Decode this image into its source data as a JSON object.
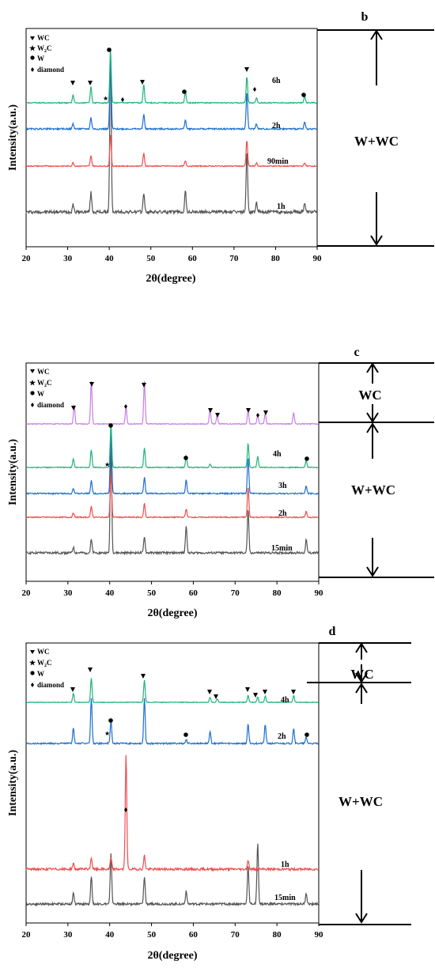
{
  "charts": [
    {
      "panel": "b",
      "type": "line",
      "xlabel": "2θ(degree)",
      "ylabel": "Intensity(a.u.)",
      "xlim": [
        20,
        90
      ],
      "xticks": [
        20,
        30,
        40,
        50,
        60,
        70,
        80,
        90
      ],
      "legend": [
        {
          "marker": "triangle",
          "label": "WC"
        },
        {
          "marker": "star",
          "label": "W₂C"
        },
        {
          "marker": "circle",
          "label": "W"
        },
        {
          "marker": "diamond",
          "label": "diamond"
        }
      ],
      "series": [
        {
          "name": "1h",
          "color": "#555555"
        },
        {
          "name": "90min",
          "color": "#f04d4d"
        },
        {
          "name": "2h",
          "color": "#1f6fd1"
        },
        {
          "name": "6h",
          "color": "#1fb57a"
        }
      ],
      "phase_labels": [
        "W+WC"
      ],
      "markers": [
        {
          "type": "triangle",
          "x": 31.3
        },
        {
          "type": "triangle",
          "x": 35.6
        },
        {
          "type": "circle",
          "x": 40.3
        },
        {
          "type": "star",
          "x": 39.6
        },
        {
          "type": "diamond",
          "x": 43.9
        },
        {
          "type": "triangle",
          "x": 48.3
        },
        {
          "type": "circle",
          "x": 58.3
        },
        {
          "type": "triangle",
          "x": 73.1
        },
        {
          "type": "diamond",
          "x": 75.4
        },
        {
          "type": "circle",
          "x": 87.0
        }
      ]
    },
    {
      "panel": "c",
      "type": "line",
      "xlabel": "2θ(degree)",
      "ylabel": "Intensity(a.u.)",
      "xlim": [
        20,
        90
      ],
      "xticks": [
        20,
        30,
        40,
        50,
        60,
        70,
        80,
        90
      ],
      "legend": [
        {
          "marker": "triangle",
          "label": "WC"
        },
        {
          "marker": "star",
          "label": "W₂C"
        },
        {
          "marker": "circle",
          "label": "W"
        },
        {
          "marker": "diamond",
          "label": "diamond"
        }
      ],
      "series": [
        {
          "name": "15min",
          "color": "#555555"
        },
        {
          "name": "2h",
          "color": "#f04d4d"
        },
        {
          "name": "3h",
          "color": "#1f6fd1"
        },
        {
          "name": "4h",
          "color": "#1fb57a"
        },
        {
          "name": "6h",
          "color": "#c77ee6"
        }
      ],
      "phase_labels": [
        "WC",
        "W+WC"
      ],
      "markers": [
        {
          "type": "triangle",
          "x": 31.5
        },
        {
          "type": "triangle",
          "x": 35.6
        },
        {
          "type": "diamond",
          "x": 43.9
        },
        {
          "type": "triangle",
          "x": 48.3
        },
        {
          "type": "triangle",
          "x": 64.0
        },
        {
          "type": "triangle",
          "x": 65.7
        },
        {
          "type": "triangle",
          "x": 73.1
        },
        {
          "type": "diamond",
          "x": 75.4
        },
        {
          "type": "triangle",
          "x": 77.2
        },
        {
          "type": "circle",
          "x": 40.3
        },
        {
          "type": "star",
          "x": 39.3
        },
        {
          "type": "circle",
          "x": 58.3
        },
        {
          "type": "circle",
          "x": 87.0
        }
      ]
    },
    {
      "panel": "d",
      "type": "line",
      "xlabel": "2θ(degree)",
      "ylabel": "Intensity(a.u.)",
      "xlim": [
        20,
        90
      ],
      "xticks": [
        20,
        30,
        40,
        50,
        60,
        70,
        80,
        90
      ],
      "legend": [
        {
          "marker": "triangle",
          "label": "WC"
        },
        {
          "marker": "star",
          "label": "W₂C"
        },
        {
          "marker": "circle",
          "label": "W"
        },
        {
          "marker": "diamond",
          "label": "diamond"
        }
      ],
      "series": [
        {
          "name": "15min",
          "color": "#555555"
        },
        {
          "name": "1h",
          "color": "#f04d4d"
        },
        {
          "name": "2h",
          "color": "#1f6fd1"
        },
        {
          "name": "4h",
          "color": "#1fb57a"
        }
      ],
      "phase_labels": [
        "WC",
        "W+WC"
      ],
      "markers": [
        {
          "type": "triangle",
          "x": 31.3
        },
        {
          "type": "triangle",
          "x": 35.6
        },
        {
          "type": "triangle",
          "x": 48.3
        },
        {
          "type": "triangle",
          "x": 64.0
        },
        {
          "type": "triangle",
          "x": 65.7
        },
        {
          "type": "triangle",
          "x": 73.1
        },
        {
          "type": "triangle",
          "x": 75.4
        },
        {
          "type": "triangle",
          "x": 77.2
        },
        {
          "type": "triangle",
          "x": 84.0
        },
        {
          "type": "circle",
          "x": 40.3
        },
        {
          "type": "star",
          "x": 39.1
        },
        {
          "type": "circle",
          "x": 58.3
        },
        {
          "type": "circle",
          "x": 87.0
        },
        {
          "type": "diamond",
          "x": 43.9
        }
      ]
    }
  ],
  "chart_data": [
    {
      "type": "line",
      "panel": "b",
      "xlabel": "2θ(degree)",
      "ylabel": "Intensity(a.u.)",
      "xlim": [
        20,
        90
      ],
      "series": [
        {
          "name": "1h",
          "peaks_x": [
            31.3,
            35.6,
            40.3,
            48.3,
            58.3,
            73.1,
            75.4,
            87.0
          ],
          "peaks_rel": [
            0.05,
            0.12,
            1.0,
            0.12,
            0.13,
            0.38,
            0.06,
            0.06
          ]
        },
        {
          "name": "90min",
          "peaks_x": [
            31.3,
            35.6,
            40.3,
            48.3,
            58.3,
            73.1,
            75.4,
            87.0
          ],
          "peaks_rel": [
            0.07,
            0.2,
            0.6,
            0.25,
            0.1,
            0.5,
            0.06,
            0.06
          ]
        },
        {
          "name": "2h",
          "peaks_x": [
            31.3,
            35.6,
            40.3,
            48.3,
            58.3,
            73.1,
            75.4,
            87.0
          ],
          "peaks_rel": [
            0.07,
            0.15,
            1.0,
            0.2,
            0.12,
            0.5,
            0.07,
            0.09
          ]
        },
        {
          "name": "6h",
          "peaks_x": [
            31.3,
            35.6,
            40.3,
            48.3,
            58.3,
            73.1,
            75.4,
            87.0
          ],
          "peaks_rel": [
            0.15,
            0.3,
            1.0,
            0.35,
            0.2,
            0.48,
            0.1,
            0.12
          ]
        }
      ]
    },
    {
      "type": "line",
      "panel": "c",
      "xlabel": "2θ(degree)",
      "ylabel": "Intensity(a.u.)",
      "xlim": [
        20,
        90
      ],
      "series": [
        {
          "name": "15min",
          "peaks_x": [
            31.3,
            35.6,
            40.3,
            48.3,
            58.3,
            73.1,
            87.0
          ],
          "peaks_rel": [
            0.05,
            0.12,
            1.0,
            0.15,
            0.25,
            0.4,
            0.12
          ]
        },
        {
          "name": "2h",
          "peaks_x": [
            31.3,
            35.6,
            40.3,
            48.3,
            58.3,
            73.1,
            87.0
          ],
          "peaks_rel": [
            0.08,
            0.2,
            0.8,
            0.25,
            0.15,
            0.55,
            0.1
          ]
        },
        {
          "name": "3h",
          "peaks_x": [
            31.3,
            35.6,
            40.3,
            48.3,
            58.3,
            73.1,
            87.0
          ],
          "peaks_rel": [
            0.08,
            0.2,
            1.0,
            0.25,
            0.2,
            0.55,
            0.12
          ]
        },
        {
          "name": "4h",
          "peaks_x": [
            31.3,
            35.6,
            40.3,
            48.3,
            58.3,
            64.0,
            73.1,
            75.4,
            87.0
          ],
          "peaks_rel": [
            0.2,
            0.4,
            1.0,
            0.45,
            0.25,
            0.08,
            0.55,
            0.25,
            0.15
          ]
        },
        {
          "name": "6h",
          "peaks_x": [
            31.5,
            35.6,
            43.9,
            48.3,
            64.0,
            65.7,
            73.1,
            75.4,
            77.2,
            84.0
          ],
          "peaks_rel": [
            0.45,
            1.0,
            0.4,
            1.0,
            0.35,
            0.2,
            0.3,
            0.2,
            0.25,
            0.25
          ]
        }
      ]
    },
    {
      "type": "line",
      "panel": "d",
      "xlabel": "2θ(degree)",
      "ylabel": "Intensity(a.u.)",
      "xlim": [
        20,
        90
      ],
      "series": [
        {
          "name": "15min",
          "peaks_x": [
            31.3,
            35.6,
            40.3,
            48.3,
            58.3,
            73.1,
            75.4,
            87.0
          ],
          "peaks_rel": [
            0.1,
            0.25,
            0.45,
            0.25,
            0.12,
            0.35,
            0.55,
            0.1
          ]
        },
        {
          "name": "1h",
          "peaks_x": [
            31.3,
            35.6,
            40.3,
            43.9,
            48.3,
            73.1
          ],
          "peaks_rel": [
            0.05,
            0.1,
            0.1,
            1.0,
            0.12,
            0.08
          ]
        },
        {
          "name": "2h",
          "peaks_x": [
            31.3,
            35.6,
            40.3,
            48.3,
            58.3,
            64.0,
            73.1,
            77.2,
            84.0,
            87.0
          ],
          "peaks_rel": [
            0.2,
            0.6,
            0.3,
            0.6,
            0.05,
            0.15,
            0.25,
            0.25,
            0.2,
            0.08
          ]
        },
        {
          "name": "4h",
          "peaks_x": [
            31.3,
            35.6,
            48.3,
            64.0,
            65.7,
            73.1,
            75.4,
            77.2,
            84.0
          ],
          "peaks_rel": [
            0.25,
            0.7,
            0.65,
            0.15,
            0.1,
            0.2,
            0.15,
            0.18,
            0.2
          ]
        }
      ]
    }
  ]
}
